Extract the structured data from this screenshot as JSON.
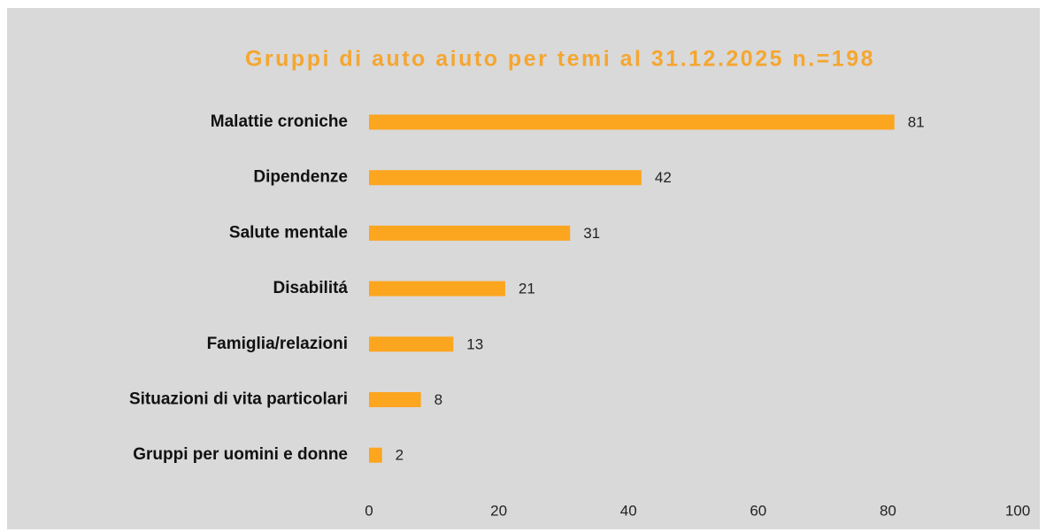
{
  "chart_data": {
    "type": "bar",
    "orientation": "horizontal",
    "title": "Gruppi di auto aiuto per temi al 31.12.2025 n.=198",
    "categories": [
      "Malattie croniche",
      "Dipendenze",
      "Salute mentale",
      "Disabilitá",
      "Famiglia/relazioni",
      "Situazioni di vita particolari",
      "Gruppi per uomini e donne"
    ],
    "values": [
      81,
      42,
      31,
      21,
      13,
      8,
      2
    ],
    "color": "#fca51f",
    "xlim": [
      0,
      100
    ],
    "xticks": [
      0,
      20,
      40,
      60,
      80,
      100
    ],
    "grid": false
  }
}
